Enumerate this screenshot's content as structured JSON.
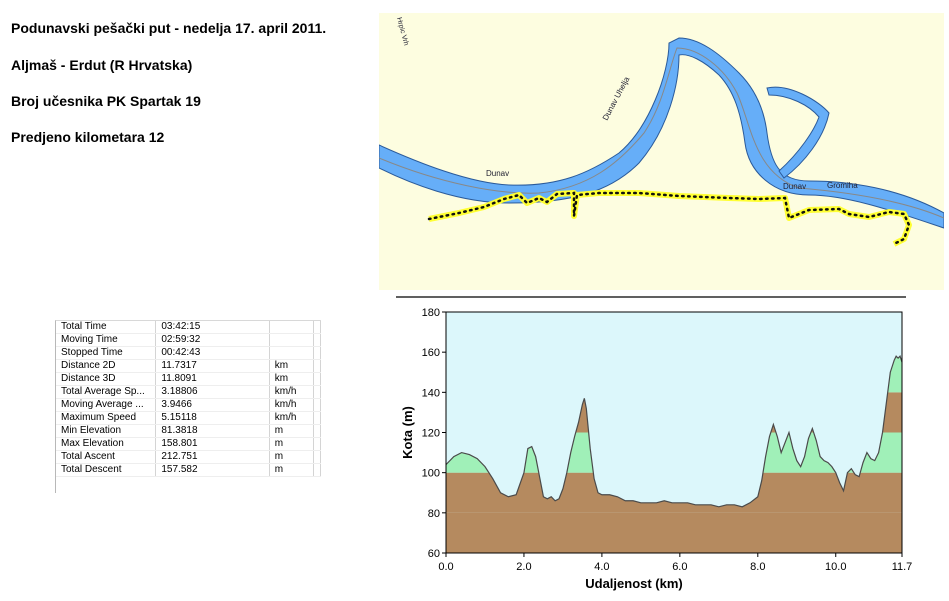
{
  "header": {
    "line1": "Podunavski pešački put - nedelja 17. april 2011.",
    "line2": "Aljmaš - Erdut (R Hrvatska)",
    "line3": "Broj učesnika PK Spartak 19",
    "line4": "Predjeno kilometara 12"
  },
  "map": {
    "labels": {
      "river_upper": "Dunav Uhelja",
      "river_left": "Dunav",
      "river_right": "Dunav",
      "island": "Gromiha",
      "road": "Hrpic Vrh"
    },
    "colors": {
      "land": "#fdfde0",
      "water": "#66aef8",
      "track": "#ffff33"
    }
  },
  "stats": {
    "rows": [
      {
        "label": "Total Time",
        "value": "03:42:15",
        "unit": ""
      },
      {
        "label": "Moving Time",
        "value": "02:59:32",
        "unit": ""
      },
      {
        "label": "Stopped Time",
        "value": "00:42:43",
        "unit": ""
      },
      {
        "label": "Distance 2D",
        "value": "11.7317",
        "unit": "km"
      },
      {
        "label": "Distance 3D",
        "value": "11.8091",
        "unit": "km"
      },
      {
        "label": "Total Average Sp...",
        "value": "3.18806",
        "unit": "km/h"
      },
      {
        "label": "Moving Average ...",
        "value": "3.9466",
        "unit": "km/h"
      },
      {
        "label": "Maximum Speed",
        "value": "5.15118",
        "unit": "km/h"
      },
      {
        "label": "Min Elevation",
        "value": "81.3818",
        "unit": "m"
      },
      {
        "label": "Max Elevation",
        "value": "158.801",
        "unit": "m"
      },
      {
        "label": "Total Ascent",
        "value": "212.751",
        "unit": "m"
      },
      {
        "label": "Total Descent",
        "value": "157.582",
        "unit": "m"
      }
    ]
  },
  "chart_data": {
    "type": "area",
    "title": "",
    "xlabel": "Udaljenost  (km)",
    "ylabel": "Kota (m)",
    "xlim": [
      0,
      11.7
    ],
    "ylim": [
      60,
      180
    ],
    "xticks": [
      "0.0",
      "2.0",
      "4.0",
      "6.0",
      "8.0",
      "10.0",
      "11.7"
    ],
    "xtick_values": [
      0,
      2,
      4,
      6,
      8,
      10,
      11.7
    ],
    "yticks": [
      60,
      80,
      100,
      120,
      140,
      160,
      180
    ],
    "x": [
      0.0,
      0.2,
      0.4,
      0.6,
      0.8,
      1.0,
      1.2,
      1.4,
      1.6,
      1.8,
      2.0,
      2.1,
      2.2,
      2.3,
      2.4,
      2.5,
      2.6,
      2.7,
      2.8,
      2.9,
      3.0,
      3.1,
      3.2,
      3.3,
      3.4,
      3.5,
      3.55,
      3.6,
      3.7,
      3.8,
      3.9,
      4.0,
      4.2,
      4.4,
      4.6,
      4.8,
      5.0,
      5.2,
      5.4,
      5.6,
      5.8,
      6.0,
      6.2,
      6.4,
      6.6,
      6.8,
      7.0,
      7.2,
      7.4,
      7.6,
      7.8,
      8.0,
      8.1,
      8.2,
      8.3,
      8.4,
      8.5,
      8.6,
      8.7,
      8.8,
      8.9,
      9.0,
      9.1,
      9.2,
      9.3,
      9.4,
      9.5,
      9.6,
      9.7,
      9.8,
      9.9,
      10.0,
      10.1,
      10.2,
      10.3,
      10.4,
      10.5,
      10.6,
      10.7,
      10.8,
      10.9,
      11.0,
      11.1,
      11.2,
      11.3,
      11.4,
      11.5,
      11.55,
      11.6,
      11.65,
      11.7
    ],
    "y": [
      104,
      108,
      110,
      109,
      107,
      103,
      97,
      90,
      88,
      89,
      100,
      112,
      113,
      108,
      98,
      88,
      87,
      88,
      86,
      87,
      92,
      100,
      110,
      118,
      125,
      134,
      137,
      132,
      112,
      97,
      90,
      89,
      89,
      88,
      86,
      86,
      85,
      85,
      85,
      86,
      85,
      85,
      85,
      84,
      84,
      84,
      83,
      84,
      84,
      83,
      85,
      88,
      96,
      108,
      118,
      124,
      118,
      110,
      115,
      120,
      112,
      106,
      103,
      108,
      117,
      122,
      116,
      108,
      106,
      105,
      103,
      100,
      95,
      91,
      100,
      102,
      99,
      98,
      105,
      110,
      107,
      106,
      110,
      120,
      135,
      150,
      156,
      158,
      157,
      158,
      155
    ],
    "bands": [
      {
        "from": 60,
        "to": 80,
        "color": "#b58a5f"
      },
      {
        "from": 80,
        "to": 100,
        "color": "#b58a5f"
      },
      {
        "from": 100,
        "to": 120,
        "color": "#a0f0b8"
      },
      {
        "from": 120,
        "to": 140,
        "color": "#b58a5f"
      },
      {
        "from": 140,
        "to": 160,
        "color": "#a0f0b8"
      },
      {
        "from": 160,
        "to": 180,
        "color": "#b58a5f"
      }
    ],
    "sky_color": "#dcf7fb",
    "line_color": "#4a4a4a"
  }
}
